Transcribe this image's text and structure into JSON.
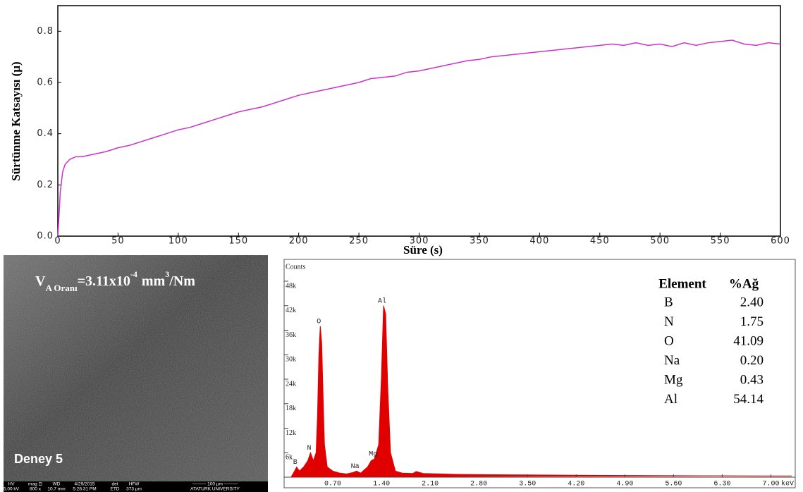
{
  "chart_data": [
    {
      "type": "line",
      "y_label": "Sürtünme Katsayısı (µ)",
      "x_label": "Süre (s)",
      "color": "#cc33cc",
      "xlim": [
        0,
        600
      ],
      "xticks": [
        0,
        50,
        100,
        150,
        200,
        250,
        300,
        350,
        400,
        450,
        500,
        550,
        600
      ],
      "ylim": [
        0,
        0.9
      ],
      "yticks": [
        {
          "value": 0,
          "label": "0.0"
        },
        0.2,
        0.4,
        0.6,
        0.8
      ],
      "x": [
        0,
        1,
        2,
        4,
        6,
        8,
        10,
        15,
        20,
        30,
        40,
        50,
        60,
        70,
        80,
        90,
        100,
        110,
        120,
        130,
        140,
        150,
        160,
        170,
        180,
        190,
        200,
        210,
        220,
        230,
        240,
        250,
        260,
        270,
        280,
        290,
        300,
        310,
        320,
        330,
        340,
        350,
        360,
        370,
        380,
        390,
        400,
        410,
        420,
        430,
        440,
        450,
        460,
        470,
        480,
        490,
        500,
        510,
        520,
        530,
        540,
        550,
        560,
        570,
        580,
        590,
        600
      ],
      "values": [
        0.0,
        0.08,
        0.17,
        0.25,
        0.28,
        0.29,
        0.3,
        0.31,
        0.31,
        0.32,
        0.33,
        0.345,
        0.355,
        0.37,
        0.385,
        0.4,
        0.415,
        0.425,
        0.44,
        0.455,
        0.47,
        0.485,
        0.495,
        0.505,
        0.52,
        0.535,
        0.55,
        0.56,
        0.57,
        0.58,
        0.59,
        0.6,
        0.615,
        0.62,
        0.625,
        0.64,
        0.645,
        0.655,
        0.665,
        0.675,
        0.685,
        0.69,
        0.7,
        0.705,
        0.71,
        0.715,
        0.72,
        0.725,
        0.73,
        0.735,
        0.74,
        0.745,
        0.75,
        0.745,
        0.755,
        0.745,
        0.75,
        0.74,
        0.755,
        0.745,
        0.755,
        0.76,
        0.765,
        0.75,
        0.745,
        0.755,
        0.75
      ]
    },
    {
      "type": "area",
      "y_label": "Counts",
      "x_unit_label": "keV",
      "color": "#e00000",
      "xlim": [
        0,
        7.35
      ],
      "xticks": [
        {
          "value": 0.7,
          "label": "0.70"
        },
        {
          "value": 1.4,
          "label": "1.40"
        },
        {
          "value": 2.1,
          "label": "2.10"
        },
        {
          "value": 2.8,
          "label": "2.80"
        },
        {
          "value": 3.5,
          "label": "3.50"
        },
        {
          "value": 4.2,
          "label": "4.20"
        },
        {
          "value": 4.9,
          "label": "4.90"
        },
        {
          "value": 5.6,
          "label": "5.60"
        },
        {
          "value": 6.3,
          "label": "6.30"
        },
        {
          "value": 7.0,
          "label": "7.00"
        }
      ],
      "ylim": [
        0,
        53000
      ],
      "yticks": [
        {
          "value": 6000,
          "label": "6k"
        },
        {
          "value": 12000,
          "label": "12k"
        },
        {
          "value": 18000,
          "label": "18k"
        },
        {
          "value": 24000,
          "label": "24k"
        },
        {
          "value": 30000,
          "label": "30k"
        },
        {
          "value": 36000,
          "label": "36k"
        },
        {
          "value": 42000,
          "label": "42k"
        },
        {
          "value": 48000,
          "label": "48k"
        }
      ],
      "x": [
        0.1,
        0.15,
        0.18,
        0.22,
        0.28,
        0.34,
        0.38,
        0.42,
        0.46,
        0.48,
        0.5,
        0.52,
        0.54,
        0.56,
        0.58,
        0.62,
        0.7,
        0.8,
        0.9,
        1.0,
        1.04,
        1.1,
        1.2,
        1.25,
        1.3,
        1.36,
        1.4,
        1.43,
        1.46,
        1.49,
        1.53,
        1.6,
        1.7,
        1.85,
        1.9,
        2.0,
        2.5,
        3.0,
        4.0,
        5.0,
        6.0,
        7.0,
        7.3
      ],
      "values": [
        0,
        1500,
        2500,
        1500,
        2500,
        4000,
        6000,
        4000,
        6000,
        15000,
        30000,
        37000,
        33000,
        20000,
        8000,
        2500,
        1500,
        1000,
        800,
        1200,
        1500,
        1000,
        2500,
        4000,
        4500,
        8000,
        25000,
        42000,
        40000,
        22000,
        6000,
        1500,
        1000,
        900,
        1400,
        900,
        700,
        600,
        500,
        400,
        350,
        300,
        300
      ],
      "annotations": [
        {
          "text": "B",
          "x": 0.18,
          "y": 2500
        },
        {
          "text": "N",
          "x": 0.38,
          "y": 6000
        },
        {
          "text": "O",
          "x": 0.52,
          "y": 37000
        },
        {
          "text": "Na",
          "x": 1.04,
          "y": 1500
        },
        {
          "text": "Mg",
          "x": 1.3,
          "y": 4500
        },
        {
          "text": "Al",
          "x": 1.43,
          "y": 42000
        }
      ]
    }
  ],
  "eds_table": {
    "columns": [
      "Element",
      "%Ağ"
    ],
    "rows": [
      [
        "B",
        "2.40"
      ],
      [
        "N",
        "1.75"
      ],
      [
        "O",
        "41.09"
      ],
      [
        "Na",
        "0.20"
      ],
      [
        "Mg",
        "0.43"
      ],
      [
        "Al",
        "54.14"
      ]
    ]
  },
  "sem_image": {
    "rate_label": [
      "V",
      "A Oranı",
      "=3.11x10",
      "-4",
      "mm",
      "3",
      "/Nm"
    ],
    "sample_label": "Deney 5",
    "info_bar": {
      "header": [
        "HV",
        "mag ⊡",
        "WD",
        "4/29/2015",
        "det",
        "HFW",
        "——— 100 µm ———"
      ],
      "values": [
        "5.00 kV",
        "800 x",
        "10.7 mm",
        "5:28:31 PM",
        "ETD",
        "373 µm",
        "ATATURK UNIVERSITY"
      ]
    }
  }
}
